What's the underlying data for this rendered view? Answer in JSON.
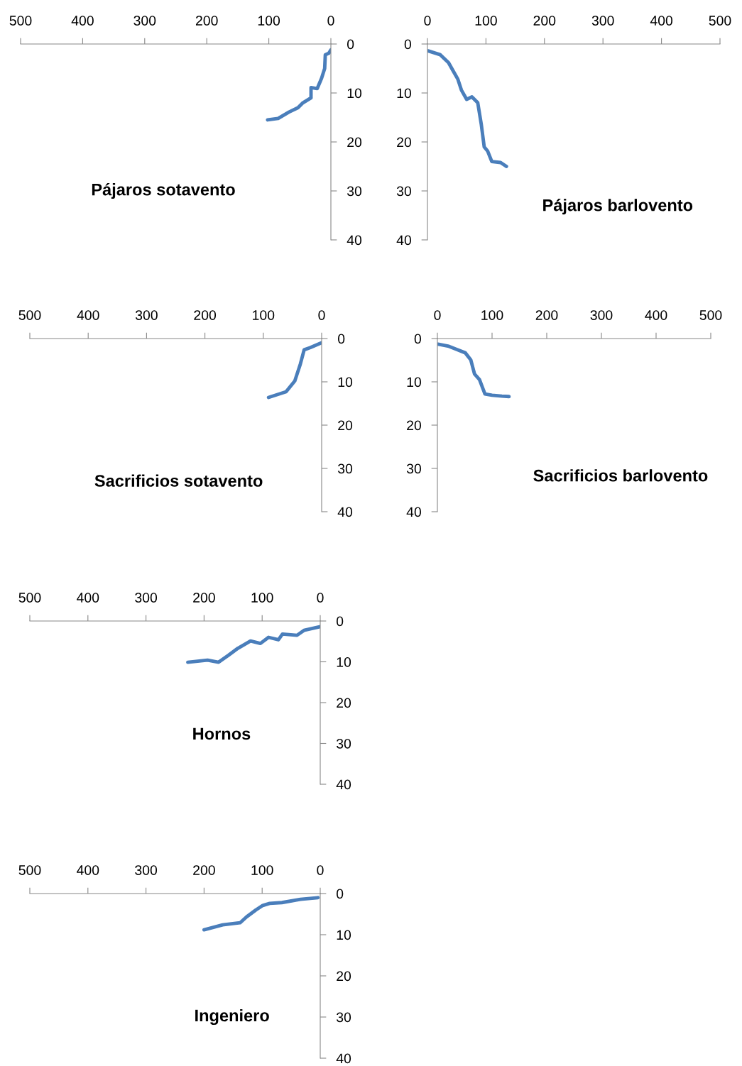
{
  "chart_data": [
    {
      "type": "line",
      "title": "Pájaros sotavento",
      "xlim": [
        500,
        0
      ],
      "xticks": [
        500,
        400,
        300,
        200,
        100,
        0
      ],
      "ylim": [
        40,
        0
      ],
      "yticks": [
        0,
        10,
        20,
        30,
        40
      ],
      "series": [
        {
          "color": "#4a7ebb",
          "x": [
            102,
            85,
            67.5,
            53,
            45,
            32,
            32,
            22,
            15,
            10,
            9,
            3.4,
            0
          ],
          "values": [
            15.5,
            15.2,
            13.9,
            13,
            12,
            11,
            8.9,
            9.1,
            7,
            5,
            2.2,
            1.9,
            1.2
          ]
        }
      ]
    },
    {
      "type": "line",
      "title": "Pájaros barlovento",
      "xlim": [
        0,
        500
      ],
      "xticks": [
        0,
        100,
        200,
        300,
        400,
        500
      ],
      "ylim": [
        40,
        0
      ],
      "yticks": [
        0,
        10,
        20,
        30,
        40
      ],
      "series": [
        {
          "color": "#4a7ebb",
          "x": [
            1,
            22,
            36,
            44,
            52,
            58,
            67,
            76,
            86,
            92,
            97,
            103,
            110,
            125,
            135
          ],
          "values": [
            1.4,
            2.2,
            3.8,
            5.5,
            7.2,
            9.4,
            11.3,
            10.8,
            12,
            16.4,
            21,
            21.9,
            24,
            24.2,
            25
          ]
        }
      ]
    },
    {
      "type": "line",
      "title": "Sacrificios sotavento",
      "xlim": [
        500,
        0
      ],
      "xticks": [
        500,
        400,
        300,
        200,
        100,
        0
      ],
      "ylim": [
        40,
        0
      ],
      "yticks": [
        0,
        10,
        20,
        30,
        40
      ],
      "series": [
        {
          "color": "#4a7ebb",
          "x": [
            91,
            61,
            46,
            36.5,
            30,
            19.5,
            1
          ],
          "values": [
            13.6,
            12.3,
            9.8,
            5.9,
            2.6,
            2.1,
            1
          ]
        }
      ]
    },
    {
      "type": "line",
      "title": "Sacrificios barlovento",
      "xlim": [
        0,
        500
      ],
      "xticks": [
        0,
        100,
        200,
        300,
        400,
        500
      ],
      "ylim": [
        40,
        0
      ],
      "yticks": [
        0,
        10,
        20,
        30,
        40
      ],
      "series": [
        {
          "color": "#4a7ebb",
          "x": [
            1,
            21,
            35,
            51,
            61,
            68,
            77,
            87,
            100,
            118,
            131
          ],
          "values": [
            1.3,
            1.8,
            2.5,
            3.3,
            4.9,
            8.2,
            9.5,
            12.8,
            13.1,
            13.3,
            13.4
          ]
        }
      ]
    },
    {
      "type": "line",
      "title": "Hornos",
      "xlim": [
        500,
        0
      ],
      "xticks": [
        500,
        400,
        300,
        200,
        100,
        0
      ],
      "ylim": [
        40,
        0
      ],
      "yticks": [
        0,
        10,
        20,
        30,
        40
      ],
      "series": [
        {
          "color": "#4a7ebb",
          "x": [
            228,
            194,
            175,
            158,
            142,
            120,
            103,
            89,
            72,
            65,
            40,
            28,
            1
          ],
          "values": [
            10.1,
            9.6,
            10.1,
            8.4,
            6.7,
            4.9,
            5.5,
            4.0,
            4.6,
            3.2,
            3.5,
            2.3,
            1.4
          ]
        }
      ]
    },
    {
      "type": "line",
      "title": "Ingeniero",
      "xlim": [
        500,
        0
      ],
      "xticks": [
        500,
        400,
        300,
        200,
        100,
        0
      ],
      "ylim": [
        40,
        0
      ],
      "yticks": [
        0,
        10,
        20,
        30,
        40
      ],
      "series": [
        {
          "color": "#4a7ebb",
          "x": [
            200,
            168,
            138,
            127,
            111,
            99,
            87,
            66,
            34,
            4
          ],
          "values": [
            8.8,
            7.6,
            7.1,
            5.7,
            4.0,
            2.9,
            2.4,
            2.2,
            1.4,
            1.0
          ]
        }
      ]
    }
  ]
}
